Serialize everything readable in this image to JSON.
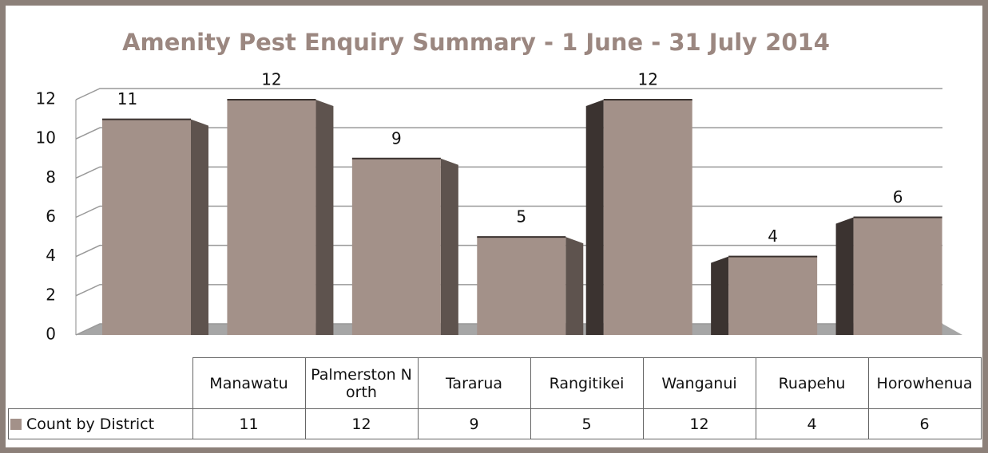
{
  "chart_data": {
    "type": "bar3d",
    "title": "Amenity Pest Enquiry Summary - 1 June - 31 July 2014",
    "categories": [
      "Manawatu",
      "Palmerston North",
      "Tararua",
      "Rangitikei",
      "Wanganui",
      "Ruapehu",
      "Horowhenua"
    ],
    "series": [
      {
        "name": "Count by District",
        "color": "#a39189",
        "values": [
          11,
          12,
          9,
          5,
          12,
          4,
          6
        ]
      }
    ],
    "ylim": [
      0,
      12
    ],
    "yticks": [
      0,
      2,
      4,
      6,
      8,
      10,
      12
    ],
    "grid": true,
    "data_table": true
  }
}
